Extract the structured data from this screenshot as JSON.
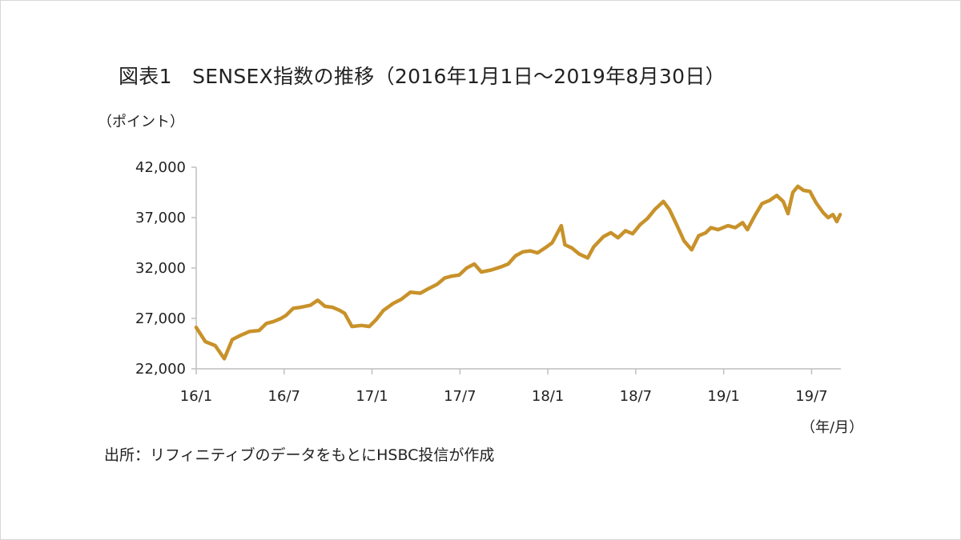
{
  "title": "図表1　SENSEX指数の推移（2016年1月1日～2019年8月30日）",
  "y_unit": "（ポイント）",
  "x_unit": "（年/月）",
  "source": "出所：リフィニティブのデータをもとにHSBC投信が作成",
  "colors": {
    "line": "#C8922A",
    "axis": "#bfbfbf"
  },
  "chart_data": {
    "type": "line",
    "title": "図表1　SENSEX指数の推移（2016年1月1日～2019年8月30日）",
    "ylabel": "（ポイント）",
    "xlabel": "（年/月）",
    "ylim": [
      22000,
      42000
    ],
    "yticks": [
      42000,
      37000,
      32000,
      27000,
      22000
    ],
    "ytick_labels": [
      "42,000",
      "37,000",
      "32,000",
      "27,000",
      "22,000"
    ],
    "xlim": [
      "2016-01",
      "2019-09"
    ],
    "xticks": [
      "2016-01",
      "2016-07",
      "2017-01",
      "2017-07",
      "2018-01",
      "2018-07",
      "2019-01",
      "2019-07"
    ],
    "xtick_labels": [
      "16/1",
      "16/7",
      "17/1",
      "17/7",
      "18/1",
      "18/7",
      "19/1",
      "19/7"
    ],
    "grid": false,
    "legend": "none",
    "series": [
      {
        "x": [
          "2016-01-01",
          "2016-01-20",
          "2016-02-10",
          "2016-02-29",
          "2016-03-15",
          "2016-04-01",
          "2016-04-20",
          "2016-05-10",
          "2016-05-25",
          "2016-06-10",
          "2016-06-25",
          "2016-07-05",
          "2016-07-20",
          "2016-08-05",
          "2016-08-25",
          "2016-09-10",
          "2016-09-25",
          "2016-10-10",
          "2016-10-25",
          "2016-11-05",
          "2016-11-20",
          "2016-12-10",
          "2016-12-26",
          "2017-01-10",
          "2017-01-25",
          "2017-02-15",
          "2017-03-01",
          "2017-03-20",
          "2017-04-10",
          "2017-04-25",
          "2017-05-15",
          "2017-05-30",
          "2017-06-15",
          "2017-06-30",
          "2017-07-15",
          "2017-07-31",
          "2017-08-15",
          "2017-09-05",
          "2017-09-25",
          "2017-10-10",
          "2017-10-25",
          "2017-11-10",
          "2017-11-25",
          "2017-12-10",
          "2017-12-26",
          "2018-01-10",
          "2018-01-29",
          "2018-02-06",
          "2018-02-20",
          "2018-03-05",
          "2018-03-23",
          "2018-04-05",
          "2018-04-25",
          "2018-05-10",
          "2018-05-25",
          "2018-06-10",
          "2018-06-25",
          "2018-07-10",
          "2018-07-25",
          "2018-08-10",
          "2018-08-28",
          "2018-09-10",
          "2018-09-25",
          "2018-10-10",
          "2018-10-26",
          "2018-11-10",
          "2018-11-25",
          "2018-12-05",
          "2018-12-20",
          "2019-01-10",
          "2019-01-25",
          "2019-02-10",
          "2019-02-20",
          "2019-03-05",
          "2019-03-20",
          "2019-04-05",
          "2019-04-20",
          "2019-05-03",
          "2019-05-13",
          "2019-05-23",
          "2019-06-03",
          "2019-06-15",
          "2019-06-28",
          "2019-07-10",
          "2019-07-25",
          "2019-08-05",
          "2019-08-15",
          "2019-08-23",
          "2019-08-30"
        ],
        "y": [
          26100,
          24700,
          24300,
          23000,
          24900,
          25300,
          25700,
          25800,
          26500,
          26700,
          27000,
          27300,
          28000,
          28100,
          28300,
          28800,
          28200,
          28100,
          27800,
          27500,
          26200,
          26300,
          26200,
          26900,
          27800,
          28500,
          28900,
          29600,
          29500,
          29900,
          30400,
          31000,
          31200,
          31300,
          32000,
          32400,
          31600,
          31800,
          32100,
          32400,
          33200,
          33600,
          33700,
          33500,
          34000,
          34500,
          36200,
          34300,
          34000,
          33400,
          33000,
          34100,
          35100,
          35500,
          35000,
          35700,
          35400,
          36300,
          36900,
          37800,
          38600,
          37800,
          36300,
          34700,
          33800,
          35200,
          35500,
          36000,
          35800,
          36200,
          36000,
          36500,
          35800,
          37200,
          38400,
          38700,
          39200,
          38600,
          37400,
          39500,
          40100,
          39700,
          39600,
          38500,
          37500,
          37000,
          37300,
          36600,
          37300
        ]
      }
    ]
  }
}
